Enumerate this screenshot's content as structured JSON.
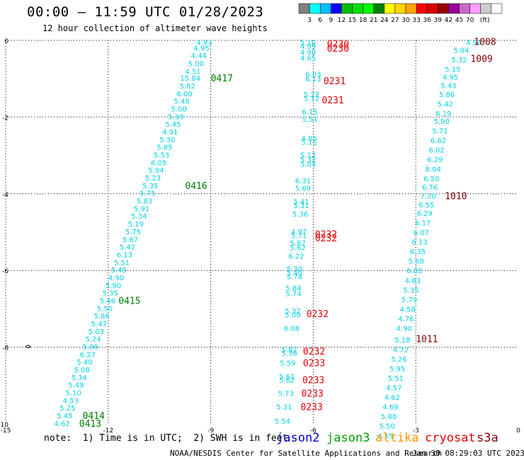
{
  "title": "00:00 – 11:59 UTC 01/28/2023",
  "subtitle": "12 hour collection of altimeter wave heights",
  "legend": {
    "colors": [
      "#808080",
      "#00ffff",
      "#00bfff",
      "#0000ff",
      "#00bf00",
      "#00df00",
      "#00ff00",
      "#008000",
      "#ffff00",
      "#ffd700",
      "#ffa500",
      "#ff0000",
      "#d90000",
      "#990000",
      "#990099",
      "#cc66cc",
      "#ffa0ff",
      "#cccccc",
      "#ffffff"
    ],
    "labels": [
      "3",
      "6",
      "9",
      "12",
      "15",
      "18",
      "21",
      "24",
      "27",
      "30",
      "33",
      "36",
      "39",
      "42",
      "45",
      "70"
    ],
    "unit": "(ft)"
  },
  "chart_data": {
    "type": "scatter",
    "xlim": [
      -15,
      0
    ],
    "ylim": [
      -10,
      0
    ],
    "xticks": [
      "-15",
      "-12",
      "-9",
      "-6",
      "-3",
      "0"
    ],
    "yticks": [
      "0",
      "-2",
      "-4",
      "-6",
      "-8",
      "-10"
    ],
    "grid": true,
    "series": [
      {
        "name": "jason2",
        "color": "#00d0e0",
        "points": [
          [
            -9.19,
            -0.05,
            "4.93"
          ],
          [
            -9.27,
            -0.19,
            "4.95"
          ],
          [
            -9.35,
            -0.39,
            "4.44"
          ],
          [
            -9.43,
            -0.6,
            "5.00"
          ],
          [
            -9.52,
            -0.8,
            "4.51"
          ],
          [
            -9.6,
            -0.98,
            "15.84"
          ],
          [
            -9.68,
            -1.18,
            "5.82"
          ],
          [
            -9.77,
            -1.38,
            "6.00"
          ],
          [
            -9.85,
            -1.58,
            "5.48"
          ],
          [
            -9.93,
            -1.78,
            "5.00"
          ],
          [
            -10.02,
            -1.98,
            "5.39"
          ],
          [
            -10.1,
            -2.18,
            "5.45"
          ],
          [
            -10.19,
            -2.38,
            "4.91"
          ],
          [
            -10.27,
            -2.58,
            "5.30"
          ],
          [
            -10.35,
            -2.78,
            "5.85"
          ],
          [
            -10.44,
            -2.98,
            "5.53"
          ],
          [
            -10.52,
            -3.18,
            "6.05"
          ],
          [
            -10.6,
            -3.38,
            "5.94"
          ],
          [
            -10.69,
            -3.58,
            "5.23"
          ],
          [
            -10.77,
            -3.78,
            "5.35"
          ],
          [
            -10.85,
            -3.98,
            "5.75"
          ],
          [
            -10.94,
            -4.18,
            "5.83"
          ],
          [
            -11.02,
            -4.38,
            "5.91"
          ],
          [
            -11.1,
            -4.58,
            "5.34"
          ],
          [
            -11.19,
            -4.78,
            "5.19"
          ],
          [
            -11.27,
            -4.98,
            "5.75"
          ],
          [
            -11.35,
            -5.18,
            "5.67"
          ],
          [
            -11.44,
            -5.38,
            "5.42"
          ],
          [
            -11.52,
            -5.58,
            "6.13"
          ],
          [
            -11.6,
            -5.78,
            "5.51"
          ],
          [
            -11.69,
            -5.98,
            "5.45"
          ],
          [
            -11.77,
            -6.18,
            "4.90"
          ],
          [
            -11.85,
            -6.38,
            "5.90"
          ],
          [
            -11.94,
            -6.58,
            "5.35"
          ],
          [
            -12.02,
            -6.78,
            "5.46"
          ],
          [
            -12.1,
            -6.98,
            "5.50"
          ],
          [
            -12.19,
            -7.18,
            "5.86"
          ],
          [
            -12.27,
            -7.38,
            "5.47"
          ],
          [
            -12.35,
            -7.58,
            "5.03"
          ],
          [
            -12.44,
            -7.78,
            "5.24"
          ],
          [
            -12.52,
            -7.98,
            "5.06"
          ],
          [
            -12.6,
            -8.18,
            "6.27"
          ],
          [
            -12.69,
            -8.38,
            "5.40"
          ],
          [
            -12.77,
            -8.58,
            "5.08"
          ],
          [
            -12.85,
            -8.78,
            "5.34"
          ],
          [
            -12.94,
            -8.98,
            "5.49"
          ],
          [
            -13.02,
            -9.18,
            "5.10"
          ],
          [
            -13.1,
            -9.38,
            "4.53"
          ],
          [
            -13.19,
            -9.58,
            "5.25"
          ],
          [
            -13.27,
            -9.78,
            "5.45"
          ],
          [
            -13.35,
            -9.98,
            "4.62"
          ],
          [
            -6.15,
            -0.05,
            "5.10"
          ],
          [
            -6.15,
            -0.15,
            "4.99"
          ],
          [
            -6.15,
            -0.3,
            "4.98"
          ],
          [
            -6.15,
            -0.45,
            "4.65"
          ],
          [
            -6.0,
            -0.88,
            "6.03"
          ],
          [
            -6.0,
            -1.0,
            "6.13"
          ],
          [
            -6.05,
            -1.4,
            "5.22"
          ],
          [
            -6.05,
            -1.5,
            "5.12"
          ],
          [
            -6.1,
            -1.85,
            "6.15"
          ],
          [
            -6.1,
            -2.05,
            "5.51"
          ],
          [
            -6.12,
            -2.55,
            "4.85"
          ],
          [
            -6.12,
            -2.65,
            "5.11"
          ],
          [
            -6.15,
            -2.98,
            "5.12"
          ],
          [
            -6.15,
            -3.1,
            "5.32"
          ],
          [
            -6.15,
            -3.22,
            "5.04"
          ],
          [
            -6.3,
            -3.65,
            "6.31"
          ],
          [
            -6.3,
            -3.85,
            "5.69"
          ],
          [
            -6.35,
            -4.2,
            "5.41"
          ],
          [
            -6.35,
            -4.3,
            "5.31"
          ],
          [
            -6.38,
            -4.52,
            "5.36"
          ],
          [
            -6.42,
            -4.98,
            "4.97"
          ],
          [
            -6.42,
            -5.08,
            "5.71"
          ],
          [
            -6.45,
            -5.28,
            "5.87"
          ],
          [
            -6.45,
            -5.4,
            "5.62"
          ],
          [
            -6.5,
            -5.62,
            "6.22"
          ],
          [
            -6.55,
            -5.95,
            "5.30"
          ],
          [
            -6.55,
            -6.05,
            "5.40"
          ],
          [
            -6.55,
            -6.15,
            "5.74"
          ],
          [
            -6.58,
            -6.45,
            "5.84"
          ],
          [
            -6.58,
            -6.6,
            "5.74"
          ],
          [
            -6.6,
            -7.05,
            "5.32"
          ],
          [
            -6.6,
            -7.15,
            "5.00"
          ],
          [
            -6.63,
            -7.5,
            "6.08"
          ],
          [
            -6.7,
            -8.05,
            "5.82"
          ],
          [
            -6.7,
            -8.15,
            "5.36"
          ],
          [
            -6.75,
            -8.4,
            "5.59"
          ],
          [
            -6.77,
            -8.75,
            "5.61"
          ],
          [
            -6.77,
            -8.85,
            "5.62"
          ],
          [
            -6.8,
            -9.2,
            "5.73"
          ],
          [
            -6.85,
            -9.55,
            "5.31"
          ],
          [
            -6.9,
            -9.92,
            "5.54"
          ],
          [
            -1.3,
            -0.05,
            "4.54"
          ],
          [
            -1.67,
            -0.25,
            "5.04"
          ],
          [
            -1.73,
            -0.5,
            "5.32"
          ],
          [
            -1.92,
            -0.75,
            "5.15"
          ],
          [
            -1.99,
            -0.95,
            "4.95"
          ],
          [
            -2.04,
            -1.17,
            "5.43"
          ],
          [
            -2.09,
            -1.4,
            "5.86"
          ],
          [
            -2.14,
            -1.65,
            "5.42"
          ],
          [
            -2.19,
            -1.9,
            "6.19"
          ],
          [
            -2.24,
            -2.1,
            "5.90"
          ],
          [
            -2.29,
            -2.35,
            "5.71"
          ],
          [
            -2.34,
            -2.6,
            "6.62"
          ],
          [
            -2.39,
            -2.85,
            "6.02"
          ],
          [
            -2.44,
            -3.1,
            "6.29"
          ],
          [
            -2.49,
            -3.35,
            "8.04"
          ],
          [
            -2.54,
            -3.6,
            "6.50"
          ],
          [
            -2.59,
            -3.82,
            "6.76"
          ],
          [
            -2.64,
            -4.05,
            "7.20"
          ],
          [
            -2.69,
            -4.28,
            "6.55"
          ],
          [
            -2.74,
            -4.5,
            "6.29"
          ],
          [
            -2.79,
            -4.75,
            "6.17"
          ],
          [
            -2.84,
            -5.0,
            "6.07"
          ],
          [
            -2.89,
            -5.25,
            "6.13"
          ],
          [
            -2.94,
            -5.5,
            "6.35"
          ],
          [
            -2.99,
            -5.75,
            "5.68"
          ],
          [
            -3.04,
            -6.0,
            "6.08"
          ],
          [
            -3.09,
            -6.25,
            "4.83"
          ],
          [
            -3.14,
            -6.5,
            "5.35"
          ],
          [
            -3.19,
            -6.75,
            "5.79"
          ],
          [
            -3.24,
            -7.0,
            "4.58"
          ],
          [
            -3.29,
            -7.25,
            "4.76"
          ],
          [
            -3.34,
            -7.5,
            "4.90"
          ],
          [
            -3.39,
            -7.8,
            "5.18"
          ],
          [
            -3.44,
            -8.05,
            "4.72"
          ],
          [
            -3.49,
            -8.3,
            "5.26"
          ],
          [
            -3.54,
            -8.55,
            "5.95"
          ],
          [
            -3.59,
            -8.8,
            "5.51"
          ],
          [
            -3.64,
            -9.05,
            "4.57"
          ],
          [
            -3.69,
            -9.3,
            "4.62"
          ],
          [
            -3.74,
            -9.55,
            "4.69"
          ],
          [
            -3.79,
            -9.8,
            "5.80"
          ],
          [
            -3.84,
            -10.05,
            "5.50"
          ],
          [
            -3.89,
            -10.3,
            "4.55"
          ]
        ]
      }
    ],
    "time_labels": [
      {
        "x": -9.0,
        "y": -0.98,
        "text": "0417",
        "color": "#008000"
      },
      {
        "x": -9.75,
        "y": -3.78,
        "text": "0416",
        "color": "#008000"
      },
      {
        "x": -11.7,
        "y": -6.78,
        "text": "0415",
        "color": "#008000"
      },
      {
        "x": -12.75,
        "y": -9.78,
        "text": "0414",
        "color": "#008000"
      },
      {
        "x": -12.85,
        "y": -9.98,
        "text": "0413",
        "color": "#008000"
      },
      {
        "x": -5.6,
        "y": -0.08,
        "text": "0230",
        "color": "#e00000"
      },
      {
        "x": -5.6,
        "y": -0.2,
        "text": "0230",
        "color": "#e00000"
      },
      {
        "x": -5.7,
        "y": -1.05,
        "text": "0231",
        "color": "#e00000"
      },
      {
        "x": -5.75,
        "y": -1.55,
        "text": "0231",
        "color": "#e00000"
      },
      {
        "x": -5.95,
        "y": -5.05,
        "text": "0232",
        "color": "#e00000"
      },
      {
        "x": -5.95,
        "y": -5.15,
        "text": "0232",
        "color": "#e00000"
      },
      {
        "x": -6.2,
        "y": -7.12,
        "text": "0232",
        "color": "#e00000"
      },
      {
        "x": -6.3,
        "y": -8.1,
        "text": "0232",
        "color": "#e00000"
      },
      {
        "x": -6.3,
        "y": -8.4,
        "text": "0233",
        "color": "#e00000"
      },
      {
        "x": -6.32,
        "y": -8.85,
        "text": "0233",
        "color": "#e00000"
      },
      {
        "x": -6.35,
        "y": -9.2,
        "text": "0233",
        "color": "#e00000"
      },
      {
        "x": -6.37,
        "y": -9.55,
        "text": "0233",
        "color": "#e00000"
      },
      {
        "x": -1.3,
        "y": -0.03,
        "text": "1008",
        "color": "#800000"
      },
      {
        "x": -1.4,
        "y": -0.47,
        "text": "1009",
        "color": "#800000"
      },
      {
        "x": -2.15,
        "y": -4.05,
        "text": "1010",
        "color": "#800000"
      },
      {
        "x": -3.0,
        "y": -7.78,
        "text": "1011",
        "color": "#800000"
      }
    ]
  },
  "note": "note:  1) Time is in UTC;  2) SWH is in feet",
  "satellites": [
    {
      "name": "jason2",
      "color": "#0000d0"
    },
    {
      "name": "jason3",
      "color": "#00a000"
    },
    {
      "name": "altika",
      "color": "#ff9900"
    },
    {
      "name": "cryosat",
      "color": "#e00000"
    },
    {
      "name": "s3a",
      "color": "#800000"
    }
  ],
  "credit": "NOAA/NESDIS Center for Satellite Applications and Research",
  "timestamp": "Jan 30 08:29:03 UTC 2023"
}
